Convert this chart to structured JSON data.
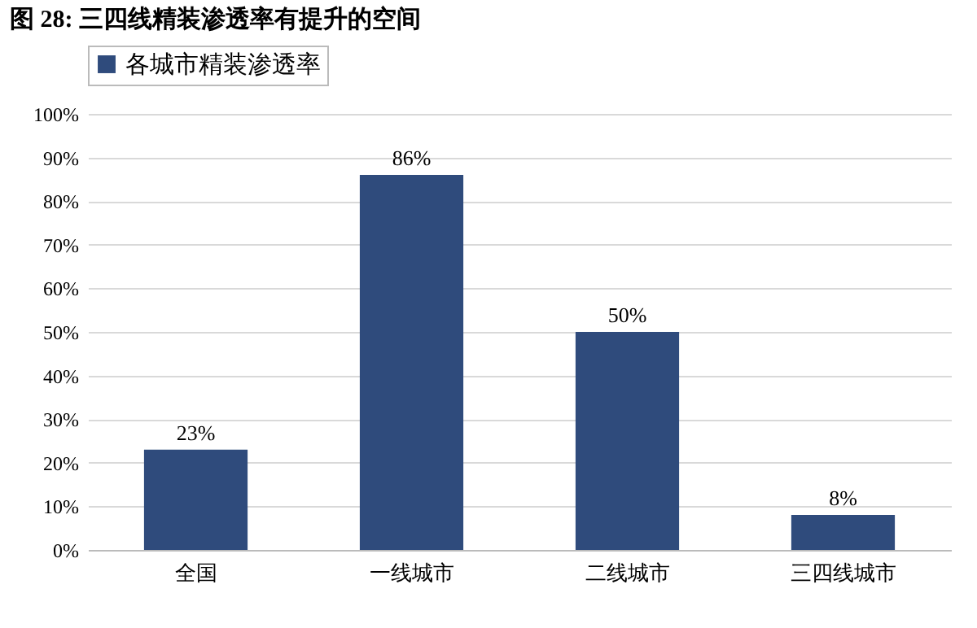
{
  "chart_data": {
    "type": "bar",
    "title": "图 28:  三四线精装渗透率有提升的空间",
    "categories": [
      "全国",
      "一线城市",
      "二线城市",
      "三四线城市"
    ],
    "series": [
      {
        "name": "各城市精装渗透率",
        "color": "#2f4b7c",
        "values": [
          23,
          86,
          50,
          8
        ],
        "value_labels": [
          "23%",
          "86%",
          "50%",
          "8%"
        ]
      }
    ],
    "ylim": [
      0,
      100
    ],
    "yticks": [
      {
        "value": 0,
        "label": "0%"
      },
      {
        "value": 10,
        "label": "10%"
      },
      {
        "value": 20,
        "label": "20%"
      },
      {
        "value": 30,
        "label": "30%"
      },
      {
        "value": 40,
        "label": "40%"
      },
      {
        "value": 50,
        "label": "50%"
      },
      {
        "value": 60,
        "label": "60%"
      },
      {
        "value": 70,
        "label": "70%"
      },
      {
        "value": 80,
        "label": "80%"
      },
      {
        "value": 90,
        "label": "90%"
      },
      {
        "value": 100,
        "label": "100%"
      }
    ],
    "grid": "y",
    "legend": "top"
  }
}
